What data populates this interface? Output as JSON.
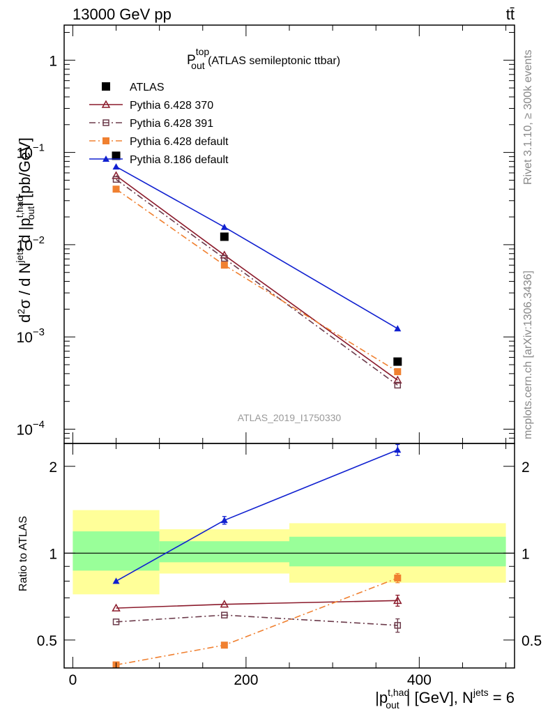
{
  "header": {
    "left": "13000 GeV pp",
    "right": "tt̄"
  },
  "side_labels": {
    "rivet": "Rivet 3.1.10, ≥ 300k events",
    "mcplots": "mcplots.cern.ch [arXiv:1306.3436]"
  },
  "watermark": "ATLAS_2019_I1750330",
  "chart_data": [
    {
      "type": "scatter",
      "panel": "main",
      "title": {
        "main": "P",
        "sup": "top",
        "sub": "out",
        "rest": " (ATLAS semileptonic ttbar)"
      },
      "ylabel": "d²σ / d N^jets d |p_out^t,had| [pb/GeV]",
      "y_scale": "log",
      "ylim": [
        7e-05,
        2.4
      ],
      "xlim": [
        -10,
        510
      ],
      "y_ticks": [
        {
          "value": 1,
          "base": "1",
          "exp": ""
        },
        {
          "value": 0.1,
          "base": "10",
          "exp": "−1"
        },
        {
          "value": 0.01,
          "base": "10",
          "exp": "−2"
        },
        {
          "value": 0.001,
          "base": "10",
          "exp": "−3"
        },
        {
          "value": 0.0001,
          "base": "10",
          "exp": "−4"
        }
      ],
      "legend_position": "top-left",
      "series": [
        {
          "name": "ATLAS",
          "color": "#000000",
          "marker": "filled-square",
          "line": "none",
          "x": [
            50,
            175,
            375
          ],
          "y": [
            0.092,
            0.0122,
            0.00054
          ]
        },
        {
          "name": "Pythia 6.428 370",
          "color": "#8b1a2b",
          "marker": "open-triangle",
          "line": "solid",
          "x": [
            50,
            175,
            375
          ],
          "y": [
            0.056,
            0.0077,
            0.00034
          ]
        },
        {
          "name": "Pythia 6.428 391",
          "color": "#6b3a4a",
          "marker": "open-square",
          "line": "dashdot",
          "x": [
            50,
            175,
            375
          ],
          "y": [
            0.051,
            0.0071,
            0.0003
          ]
        },
        {
          "name": "Pythia 6.428 default",
          "color": "#f08030",
          "marker": "filled-square",
          "line": "dashdot",
          "x": [
            50,
            175,
            375
          ],
          "y": [
            0.04,
            0.006,
            0.00042
          ]
        },
        {
          "name": "Pythia 8.186 default",
          "color": "#1020d0",
          "marker": "filled-triangle",
          "line": "solid",
          "x": [
            50,
            175,
            375
          ],
          "y": [
            0.07,
            0.0155,
            0.00123
          ],
          "extra_point": {
            "x": 40,
            "y": 0.078
          }
        }
      ]
    },
    {
      "type": "scatter",
      "panel": "ratio",
      "ylabel": "Ratio to ATLAS",
      "y_scale": "log",
      "ylim": [
        0.4,
        2.4
      ],
      "xlim": [
        -10,
        510
      ],
      "y_ticks": [
        {
          "value": 2,
          "label": "2"
        },
        {
          "value": 1,
          "label": "1"
        },
        {
          "value": 0.5,
          "label": "0.5"
        }
      ],
      "x_ticks": [
        {
          "value": 0,
          "label": "0"
        },
        {
          "value": 200,
          "label": "200"
        },
        {
          "value": 400,
          "label": "400"
        }
      ],
      "xlabel": {
        "base": "|p",
        "sup": "t,had",
        "sub": "out",
        "rest": "| [GeV], N",
        "sup2": "jets",
        "rest2": " = 6"
      },
      "bands": [
        {
          "x0": 0,
          "x1": 100,
          "yellow": [
            0.72,
            1.41
          ],
          "green": [
            0.87,
            1.19
          ]
        },
        {
          "x0": 100,
          "x1": 250,
          "yellow": [
            0.85,
            1.21
          ],
          "green": [
            0.93,
            1.1
          ]
        },
        {
          "x0": 250,
          "x1": 500,
          "yellow": [
            0.79,
            1.27
          ],
          "green": [
            0.9,
            1.14
          ]
        }
      ],
      "reference_line": 1,
      "series": [
        {
          "name": "Pythia 6.428 370",
          "color": "#8b1a2b",
          "marker": "open-triangle",
          "line": "solid",
          "x": [
            50,
            175,
            375
          ],
          "y": [
            0.645,
            0.665,
            0.685
          ],
          "err": [
            0,
            0,
            0.03
          ]
        },
        {
          "name": "Pythia 6.428 391",
          "color": "#6b3a4a",
          "marker": "open-square",
          "line": "dashdot",
          "x": [
            50,
            175,
            375
          ],
          "y": [
            0.578,
            0.61,
            0.562
          ],
          "err": [
            0,
            0,
            0.03
          ]
        },
        {
          "name": "Pythia 6.428 default",
          "color": "#f08030",
          "marker": "filled-square",
          "line": "dashdot",
          "x": [
            50,
            175,
            375
          ],
          "y": [
            0.41,
            0.48,
            0.82
          ],
          "err": [
            0,
            0,
            0.03
          ]
        },
        {
          "name": "Pythia 8.186 default",
          "color": "#1020d0",
          "marker": "filled-triangle",
          "line": "solid",
          "x": [
            50,
            175,
            375
          ],
          "y": [
            0.8,
            1.3,
            2.28
          ],
          "err": [
            0,
            0.04,
            0.1
          ]
        }
      ]
    }
  ]
}
